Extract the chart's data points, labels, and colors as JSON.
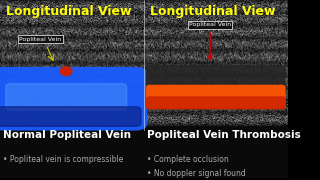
{
  "bg_color": "#000000",
  "left_title": "Longitudinal View",
  "right_title": "Longitudinal View",
  "title_color": "#ffff00",
  "title_fontsize": 9,
  "left_label": "Normal Popliteal Vein",
  "right_label": "Popliteal Vein Thrombosis",
  "label_fontsize": 7.5,
  "left_bullet": "Popliteal vein is compressible",
  "right_bullets": [
    "Complete occlusion",
    "No doppler signal found"
  ],
  "bullet_fontsize": 5.5,
  "annotation_text": "Popliteal Vein",
  "annotation_fontsize": 4.5,
  "blue_vessel_color": "#1a5cff",
  "orange_vessel_color": "#ff5500",
  "arrow_color_left": "#cccc00",
  "arrow_color_right": "#cc0000",
  "bottom_text_color": "#aaaaaa",
  "white": "#ffffff"
}
